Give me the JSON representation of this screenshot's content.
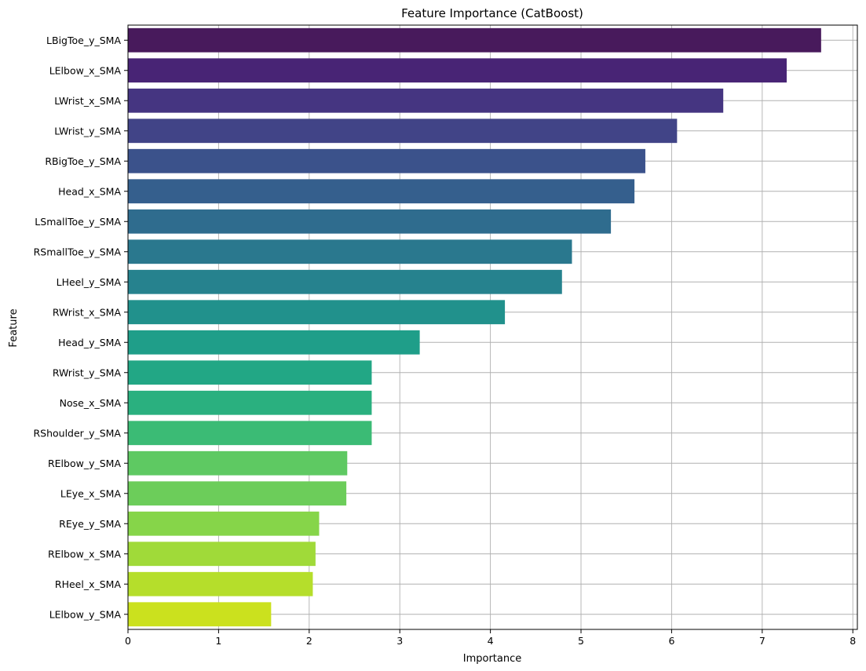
{
  "chart_data": {
    "type": "bar",
    "orientation": "horizontal",
    "title": "Feature Importance (CatBoost)",
    "xlabel": "Importance",
    "ylabel": "Feature",
    "xlim": [
      0,
      8.05
    ],
    "xticks": [
      0,
      1,
      2,
      3,
      4,
      5,
      6,
      7,
      8
    ],
    "grid": true,
    "categories": [
      "LBigToe_y_SMA",
      "LElbow_x_SMA",
      "LWrist_x_SMA",
      "LWrist_y_SMA",
      "RBigToe_y_SMA",
      "Head_x_SMA",
      "LSmallToe_y_SMA",
      "RSmallToe_y_SMA",
      "LHeel_y_SMA",
      "RWrist_x_SMA",
      "Head_y_SMA",
      "RWrist_y_SMA",
      "Nose_x_SMA",
      "RShoulder_y_SMA",
      "RElbow_y_SMA",
      "LEye_x_SMA",
      "REye_y_SMA",
      "RElbow_x_SMA",
      "RHeel_x_SMA",
      "LElbow_y_SMA"
    ],
    "values": [
      7.65,
      7.27,
      6.57,
      6.06,
      5.71,
      5.59,
      5.33,
      4.9,
      4.79,
      4.16,
      3.22,
      2.69,
      2.69,
      2.69,
      2.42,
      2.41,
      2.11,
      2.07,
      2.04,
      1.58
    ],
    "colors": [
      "#481a5c",
      "#482475",
      "#453581",
      "#414487",
      "#3b528b",
      "#355f8d",
      "#2f6c8e",
      "#2a788e",
      "#26828e",
      "#21918c",
      "#1f9e89",
      "#22a785",
      "#2ab07f",
      "#3bbb75",
      "#5ec962",
      "#6ccd5a",
      "#86d549",
      "#a0da39",
      "#b5de2b",
      "#cbe11e"
    ]
  }
}
